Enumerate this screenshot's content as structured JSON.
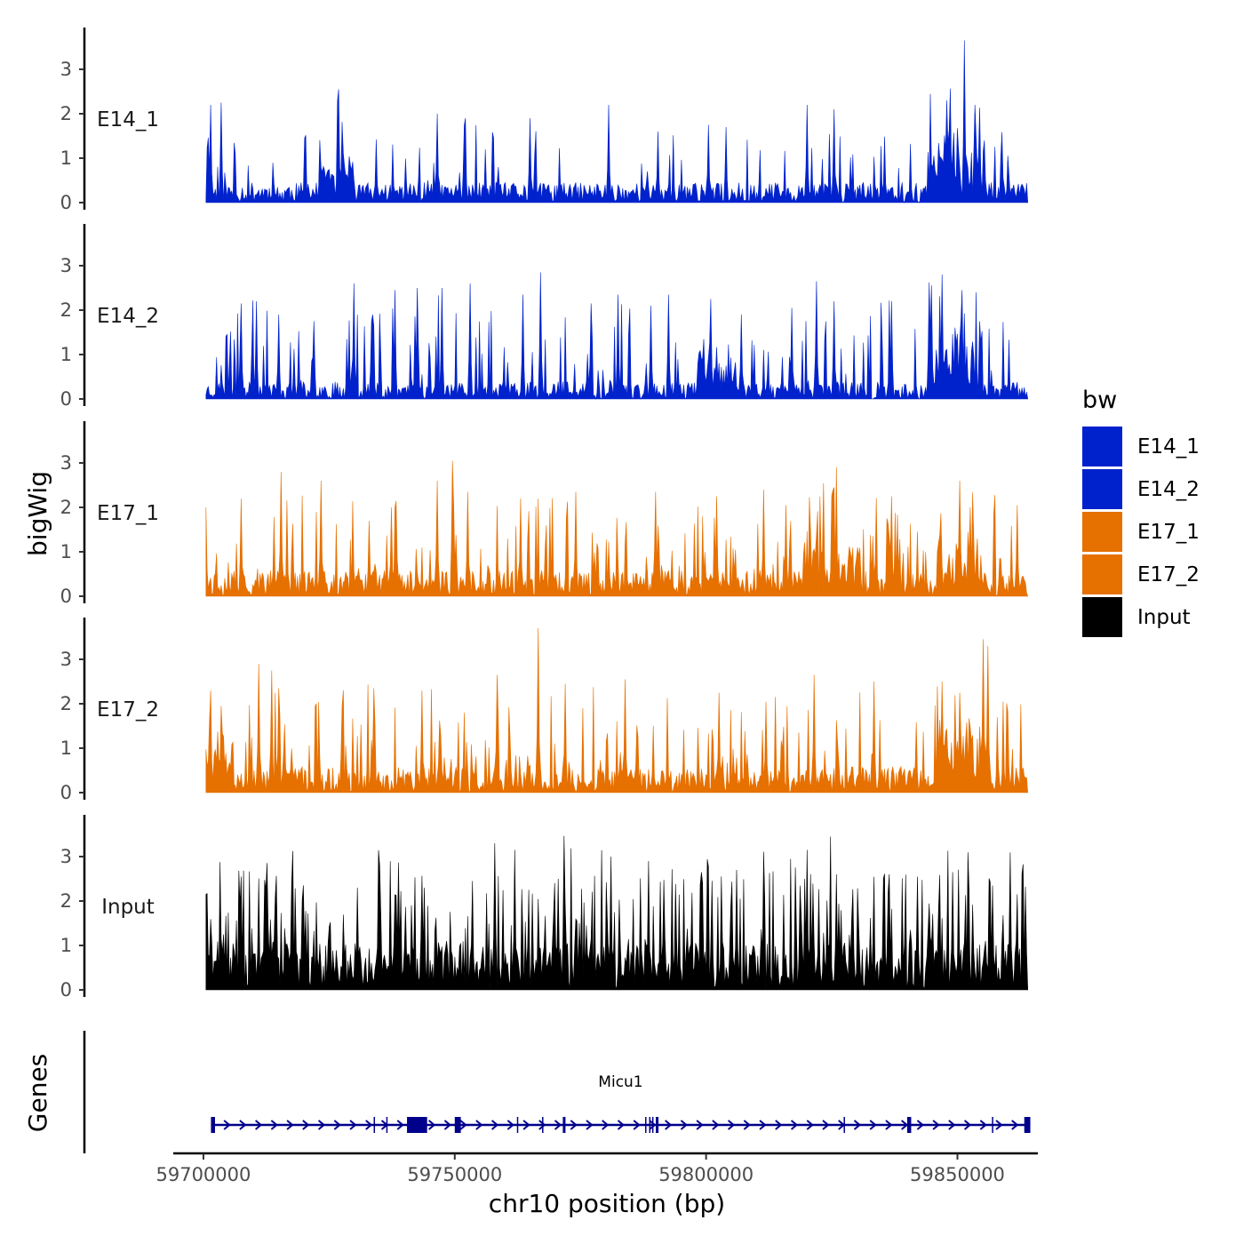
{
  "chart_data": {
    "type": "area",
    "title": "",
    "xlabel": "chr10 position (bp)",
    "ylabel": "bigWig",
    "genes_label": "Genes",
    "xlim": [
      59694000,
      59866000
    ],
    "x_ticks": [
      59700000,
      59750000,
      59800000,
      59850000
    ],
    "x_tick_labels": [
      "59700000",
      "59750000",
      "59800000",
      "59850000"
    ],
    "region": [
      59700500,
      59864000
    ],
    "ylim": [
      0,
      3.9
    ],
    "y_ticks": [
      0,
      1,
      2,
      3
    ],
    "y_tick_labels": [
      "0",
      "1",
      "2",
      "3"
    ],
    "legend": {
      "title": "bw",
      "position": "right",
      "entries": [
        {
          "label": "E14_1",
          "color": "#0022cc"
        },
        {
          "label": "E14_2",
          "color": "#0022cc"
        },
        {
          "label": "E17_1",
          "color": "#e67000"
        },
        {
          "label": "E17_2",
          "color": "#e67000"
        },
        {
          "label": "Input",
          "color": "#000000"
        }
      ]
    },
    "tracks": [
      {
        "name": "E14_1",
        "color": "#0022cc",
        "bins": 700,
        "seed": 11,
        "baseline_mean": 0.35,
        "baseline_peak_prob": 0.1,
        "baseline_peak_max": 1.5,
        "peaks": [
          {
            "x": 59701500,
            "y": 2.2
          },
          {
            "x": 59703500,
            "y": 2.25
          },
          {
            "x": 59727000,
            "y": 2.55
          },
          {
            "x": 59746500,
            "y": 2.0
          },
          {
            "x": 59752000,
            "y": 1.75
          },
          {
            "x": 59765000,
            "y": 1.9
          },
          {
            "x": 59780500,
            "y": 2.2
          },
          {
            "x": 59790500,
            "y": 1.6
          },
          {
            "x": 59800500,
            "y": 1.75
          },
          {
            "x": 59804000,
            "y": 1.7
          },
          {
            "x": 59820000,
            "y": 2.2
          },
          {
            "x": 59825500,
            "y": 2.1
          },
          {
            "x": 59848000,
            "y": 2.3
          },
          {
            "x": 59851500,
            "y": 3.65
          },
          {
            "x": 59853500,
            "y": 2.2
          },
          {
            "x": 59864000,
            "y": 1.7
          }
        ],
        "dense_regions": [
          {
            "from": 59844000,
            "to": 59856000,
            "level": 0.75
          },
          {
            "from": 59723000,
            "to": 59730000,
            "level": 0.45
          }
        ],
        "gaps": [
          59716000,
          59758000,
          59796000,
          59839500
        ]
      },
      {
        "name": "E14_2",
        "color": "#0022cc",
        "bins": 700,
        "seed": 23,
        "baseline_mean": 0.3,
        "baseline_peak_prob": 0.16,
        "baseline_peak_max": 2.0,
        "peaks": [
          {
            "x": 59707500,
            "y": 2.15
          },
          {
            "x": 59710500,
            "y": 2.2
          },
          {
            "x": 59715000,
            "y": 1.9
          },
          {
            "x": 59722000,
            "y": 1.75
          },
          {
            "x": 59730000,
            "y": 2.6
          },
          {
            "x": 59733500,
            "y": 1.75
          },
          {
            "x": 59738000,
            "y": 2.45
          },
          {
            "x": 59742500,
            "y": 2.5
          },
          {
            "x": 59747500,
            "y": 2.5
          },
          {
            "x": 59753000,
            "y": 2.6
          },
          {
            "x": 59763500,
            "y": 2.35
          },
          {
            "x": 59767000,
            "y": 2.85
          },
          {
            "x": 59777000,
            "y": 2.15
          },
          {
            "x": 59782500,
            "y": 2.35
          },
          {
            "x": 59789000,
            "y": 2.1
          },
          {
            "x": 59792500,
            "y": 2.35
          },
          {
            "x": 59801000,
            "y": 2.25
          },
          {
            "x": 59807000,
            "y": 1.9
          },
          {
            "x": 59817000,
            "y": 2.05
          },
          {
            "x": 59822000,
            "y": 2.65
          },
          {
            "x": 59825500,
            "y": 2.2
          },
          {
            "x": 59837000,
            "y": 2.2
          },
          {
            "x": 59847000,
            "y": 2.8
          },
          {
            "x": 59851000,
            "y": 2.45
          },
          {
            "x": 59854500,
            "y": 1.75
          },
          {
            "x": 59864000,
            "y": 1.45
          }
        ],
        "dense_regions": [
          {
            "from": 59844000,
            "to": 59855000,
            "level": 0.9
          },
          {
            "from": 59798000,
            "to": 59806000,
            "level": 0.55
          }
        ],
        "gaps": [
          59738500,
          59744000,
          59764000,
          59787000,
          59833000,
          59858500
        ]
      },
      {
        "name": "E17_1",
        "color": "#e67000",
        "bins": 700,
        "seed": 37,
        "baseline_mean": 0.45,
        "baseline_peak_prob": 0.2,
        "baseline_peak_max": 1.9,
        "peaks": [
          {
            "x": 59700500,
            "y": 2.0
          },
          {
            "x": 59707500,
            "y": 2.2
          },
          {
            "x": 59715500,
            "y": 2.8
          },
          {
            "x": 59723500,
            "y": 2.6
          },
          {
            "x": 59733000,
            "y": 1.7
          },
          {
            "x": 59737500,
            "y": 2.0
          },
          {
            "x": 59746500,
            "y": 2.6
          },
          {
            "x": 59749500,
            "y": 3.05
          },
          {
            "x": 59752500,
            "y": 2.35
          },
          {
            "x": 59763000,
            "y": 2.2
          },
          {
            "x": 59774000,
            "y": 2.35
          },
          {
            "x": 59790000,
            "y": 2.35
          },
          {
            "x": 59802000,
            "y": 2.25
          },
          {
            "x": 59811500,
            "y": 2.4
          },
          {
            "x": 59816000,
            "y": 2.05
          },
          {
            "x": 59825500,
            "y": 2.45
          },
          {
            "x": 59837000,
            "y": 2.25
          },
          {
            "x": 59850500,
            "y": 2.6
          },
          {
            "x": 59852500,
            "y": 2.0
          },
          {
            "x": 59862000,
            "y": 2.05
          }
        ],
        "dense_regions": [
          {
            "from": 59846000,
            "to": 59854000,
            "level": 0.65
          },
          {
            "from": 59819000,
            "to": 59831000,
            "level": 0.6
          }
        ],
        "gaps": [
          59741000,
          59768500,
          59834500,
          59858000
        ]
      },
      {
        "name": "E17_2",
        "color": "#e67000",
        "bins": 700,
        "seed": 53,
        "baseline_mean": 0.45,
        "baseline_peak_prob": 0.22,
        "baseline_peak_max": 2.0,
        "peaks": [
          {
            "x": 59701500,
            "y": 2.3
          },
          {
            "x": 59703500,
            "y": 1.95
          },
          {
            "x": 59711000,
            "y": 2.9
          },
          {
            "x": 59713500,
            "y": 2.75
          },
          {
            "x": 59715000,
            "y": 2.35
          },
          {
            "x": 59727500,
            "y": 1.95
          },
          {
            "x": 59734000,
            "y": 2.35
          },
          {
            "x": 59743500,
            "y": 2.3
          },
          {
            "x": 59758500,
            "y": 2.65
          },
          {
            "x": 59766500,
            "y": 3.7
          },
          {
            "x": 59772000,
            "y": 2.45
          },
          {
            "x": 59784000,
            "y": 2.55
          },
          {
            "x": 59802500,
            "y": 2.25
          },
          {
            "x": 59812000,
            "y": 2.05
          },
          {
            "x": 59821500,
            "y": 2.65
          },
          {
            "x": 59833500,
            "y": 2.5
          },
          {
            "x": 59847000,
            "y": 2.5
          },
          {
            "x": 59850500,
            "y": 2.25
          },
          {
            "x": 59856000,
            "y": 3.3
          },
          {
            "x": 59864000,
            "y": 2.5
          }
        ],
        "dense_regions": [
          {
            "from": 59846000,
            "to": 59856000,
            "level": 0.8
          },
          {
            "from": 59700500,
            "to": 59706000,
            "level": 0.6
          }
        ],
        "gaps": [
          59736000,
          59751000,
          59788000,
          59825000
        ]
      },
      {
        "name": "Input",
        "color": "#000000",
        "bins": 700,
        "seed": 71,
        "baseline_mean": 0.85,
        "baseline_peak_prob": 0.3,
        "baseline_peak_max": 2.4,
        "peaks": [
          {
            "x": 59700500,
            "y": 2.15
          },
          {
            "x": 59707500,
            "y": 2.55
          },
          {
            "x": 59712500,
            "y": 2.25
          },
          {
            "x": 59717500,
            "y": 2.4
          },
          {
            "x": 59735000,
            "y": 2.8
          },
          {
            "x": 59744000,
            "y": 2.3
          },
          {
            "x": 59753500,
            "y": 2.45
          },
          {
            "x": 59758000,
            "y": 3.3
          },
          {
            "x": 59762000,
            "y": 3.15
          },
          {
            "x": 59770500,
            "y": 2.5
          },
          {
            "x": 59781000,
            "y": 3.0
          },
          {
            "x": 59788500,
            "y": 2.9
          },
          {
            "x": 59799000,
            "y": 2.65
          },
          {
            "x": 59806000,
            "y": 2.7
          },
          {
            "x": 59820000,
            "y": 3.15
          },
          {
            "x": 59826000,
            "y": 2.6
          },
          {
            "x": 59836500,
            "y": 2.6
          },
          {
            "x": 59842000,
            "y": 2.55
          },
          {
            "x": 59849000,
            "y": 2.65
          },
          {
            "x": 59857000,
            "y": 2.35
          },
          {
            "x": 59862000,
            "y": 2.15
          }
        ],
        "dense_regions": [],
        "gaps": [
          59773000,
          59812000
        ]
      }
    ],
    "gene_track": {
      "gene_name": "Micu1",
      "strand": "+",
      "color": "#00008b",
      "start": 59701500,
      "end": 59864500,
      "exons": [
        {
          "start": 59701500,
          "end": 59702300
        },
        {
          "start": 59740500,
          "end": 59744500
        },
        {
          "start": 59750000,
          "end": 59751200
        },
        {
          "start": 59771500,
          "end": 59772000
        },
        {
          "start": 59790000,
          "end": 59790400
        },
        {
          "start": 59840000,
          "end": 59840800
        },
        {
          "start": 59863300,
          "end": 59864500
        }
      ],
      "intron_marks": [
        59734000,
        59736500,
        59751000,
        59762500,
        59767500,
        59788000,
        59788800,
        59789400,
        59827500,
        59857000
      ]
    }
  }
}
